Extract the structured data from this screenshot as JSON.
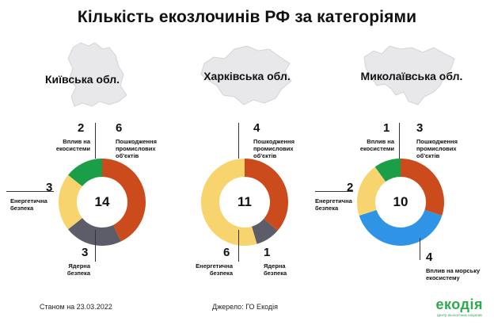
{
  "title": "Кількість екозлочинів РФ за категоріями",
  "colors": {
    "damage": "#cc4b1d",
    "nuclear": "#5c5d68",
    "energy": "#f7d46d",
    "eco": "#1a9e48",
    "marine": "#2f94e6",
    "map": "#e8e8ea"
  },
  "chart_data": [
    {
      "type": "pie",
      "title": "Київська обл.",
      "total": "14",
      "slices": [
        {
          "label": "Пошкодження промислових об'єктів",
          "value": 6,
          "color": "#cc4b1d"
        },
        {
          "label": "Ядерна безпека",
          "value": 3,
          "color": "#5c5d68"
        },
        {
          "label": "Енергетична безпека",
          "value": 3,
          "color": "#f7d46d"
        },
        {
          "label": "Вплив на екосистеми",
          "value": 2,
          "color": "#1a9e48"
        }
      ]
    },
    {
      "type": "pie",
      "title": "Харківська обл.",
      "total": "11",
      "slices": [
        {
          "label": "Пошкодження промислових об'єктів",
          "value": 4,
          "color": "#cc4b1d"
        },
        {
          "label": "Ядерна безпека",
          "value": 1,
          "color": "#5c5d68"
        },
        {
          "label": "Енергетична безпека",
          "value": 6,
          "color": "#f7d46d"
        }
      ]
    },
    {
      "type": "pie",
      "title": "Миколаївська обл.",
      "total": "10",
      "slices": [
        {
          "label": "Пошкодження промислових об'єктів",
          "value": 3,
          "color": "#cc4b1d"
        },
        {
          "label": "Вплив на морську екосистему",
          "value": 4,
          "color": "#2f94e6"
        },
        {
          "label": "Енергетична безпека",
          "value": 2,
          "color": "#f7d46d"
        },
        {
          "label": "Вплив на екосистеми",
          "value": 1,
          "color": "#1a9e48"
        }
      ]
    }
  ],
  "labels": {
    "kyiv": {
      "eco_num": "2",
      "eco_text": "Вплив на\nекосистеми",
      "dmg_num": "6",
      "dmg_text": "Пошкодження\nпромислових\nоб'єктів",
      "energy_num": "3",
      "energy_text": "Енергетична\nбезпека",
      "nuc_num": "3",
      "nuc_text": "Ядерна\nбезпека"
    },
    "kharkiv": {
      "dmg_num": "4",
      "dmg_text": "Пошкодження\nпромислових\nоб'єктів",
      "energy_num": "6",
      "energy_text": "Енергетична\nбезпека",
      "nuc_num": "1",
      "nuc_text": "Ядерна\nбезпека"
    },
    "mykolaiv": {
      "eco_num": "1",
      "eco_text": "Вплив на\nекосистеми",
      "dmg_num": "3",
      "dmg_text": "Пошкодження\nпромислових\nоб'єктів",
      "energy_num": "2",
      "energy_text": "Енергетична\nбезпека",
      "marine_num": "4",
      "marine_text": "Вплив на морську\nекосистему"
    }
  },
  "footer": {
    "date": "Станом на 23.03.2022",
    "source": "Джерело: ГО Екодія",
    "logo": "екодія",
    "logo_sub": "Центр екологічних ініціатив"
  }
}
